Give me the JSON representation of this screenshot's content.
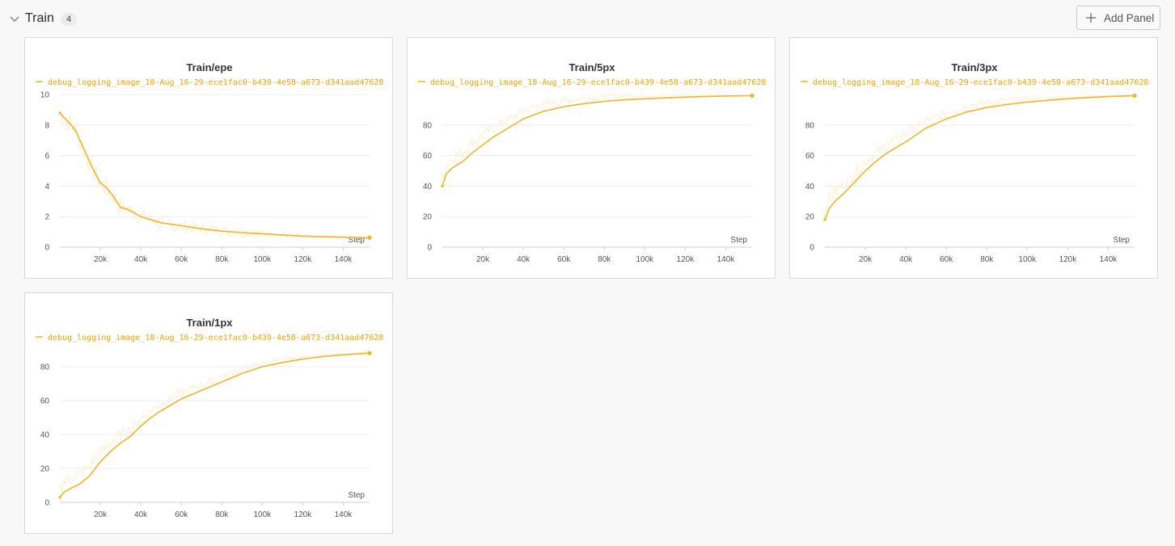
{
  "section": {
    "title": "Train",
    "count": "4",
    "add_panel_label": "Add Panel"
  },
  "icons": {
    "collapse": "chevron-down-icon",
    "add": "plus-icon"
  },
  "colors": {
    "series": "#f0b429",
    "raw": "#fdf0d5",
    "grid": "#ececec"
  },
  "chart_data": [
    {
      "type": "line",
      "title": "Train/epe",
      "legend": "debug_logging_image_18-Aug_16-29-ece1fac0-b439-4e58-a673-d341aad47628",
      "xlabel": "Step",
      "ylim": [
        0,
        10
      ],
      "y_ticks": [
        "0",
        "2",
        "4",
        "6",
        "8",
        "10"
      ],
      "xlim": [
        0,
        153000
      ],
      "x_ticks": [
        "20k",
        "40k",
        "60k",
        "80k",
        "100k",
        "120k",
        "140k"
      ],
      "series": [
        {
          "x": [
            0,
            2000,
            5000,
            8000,
            10000,
            13000,
            16000,
            20000,
            23000,
            26000,
            30000,
            33000,
            36000,
            40000,
            45000,
            50000,
            55000,
            60000,
            70000,
            80000,
            90000,
            100000,
            110000,
            120000,
            130000,
            140000,
            145000,
            150000,
            153000
          ],
          "y": [
            8.8,
            8.5,
            8.1,
            7.6,
            7.0,
            6.1,
            5.2,
            4.2,
            3.9,
            3.4,
            2.6,
            2.5,
            2.3,
            2.0,
            1.8,
            1.6,
            1.5,
            1.4,
            1.2,
            1.05,
            0.95,
            0.88,
            0.8,
            0.72,
            0.68,
            0.65,
            0.63,
            0.62,
            0.62
          ]
        }
      ]
    },
    {
      "type": "line",
      "title": "Train/5px",
      "legend": "debug_logging_image_18-Aug_16-29-ece1fac0-b439-4e58-a673-d341aad47628",
      "xlabel": "Step",
      "ylim": [
        0,
        100
      ],
      "y_ticks": [
        "0",
        "20",
        "40",
        "60",
        "80"
      ],
      "xlim": [
        0,
        153000
      ],
      "x_ticks": [
        "20k",
        "40k",
        "60k",
        "80k",
        "100k",
        "120k",
        "140k"
      ],
      "series": [
        {
          "x": [
            0,
            2000,
            5000,
            10000,
            15000,
            20000,
            25000,
            30000,
            35000,
            40000,
            50000,
            60000,
            70000,
            80000,
            90000,
            100000,
            110000,
            120000,
            130000,
            140000,
            153000
          ],
          "y": [
            40,
            48,
            52,
            56,
            62,
            67,
            72,
            76,
            80,
            84,
            89,
            92,
            94,
            95.5,
            96.5,
            97.2,
            97.8,
            98.3,
            98.7,
            99,
            99.2
          ]
        }
      ]
    },
    {
      "type": "line",
      "title": "Train/3px",
      "legend": "debug_logging_image_18-Aug_16-29-ece1fac0-b439-4e58-a673-d341aad47628",
      "xlabel": "Step",
      "ylim": [
        0,
        100
      ],
      "y_ticks": [
        "0",
        "20",
        "40",
        "60",
        "80"
      ],
      "xlim": [
        0,
        153000
      ],
      "x_ticks": [
        "20k",
        "40k",
        "60k",
        "80k",
        "100k",
        "120k",
        "140k"
      ],
      "series": [
        {
          "x": [
            0,
            2000,
            5000,
            10000,
            15000,
            20000,
            25000,
            30000,
            35000,
            40000,
            50000,
            60000,
            70000,
            80000,
            90000,
            100000,
            110000,
            120000,
            130000,
            140000,
            153000
          ],
          "y": [
            18,
            25,
            30,
            36,
            43,
            50,
            56,
            61,
            65,
            69,
            78,
            84,
            88.5,
            91.5,
            93.5,
            95,
            96.2,
            97.2,
            98,
            98.6,
            99.2
          ]
        }
      ]
    },
    {
      "type": "line",
      "title": "Train/1px",
      "legend": "debug_logging_image_18-Aug_16-29-ece1fac0-b439-4e58-a673-d341aad47628",
      "xlabel": "Step",
      "ylim": [
        0,
        90
      ],
      "y_ticks": [
        "0",
        "20",
        "40",
        "60",
        "80"
      ],
      "xlim": [
        0,
        153000
      ],
      "x_ticks": [
        "20k",
        "40k",
        "60k",
        "80k",
        "100k",
        "120k",
        "140k"
      ],
      "series": [
        {
          "x": [
            0,
            2000,
            5000,
            10000,
            15000,
            20000,
            25000,
            30000,
            35000,
            40000,
            45000,
            50000,
            60000,
            70000,
            80000,
            90000,
            100000,
            110000,
            120000,
            130000,
            140000,
            153000
          ],
          "y": [
            3,
            6,
            8,
            11,
            16,
            24,
            30,
            35,
            39,
            45,
            50,
            54,
            61,
            66,
            71,
            76,
            80,
            82.5,
            84.5,
            86,
            87,
            88
          ]
        }
      ]
    }
  ]
}
